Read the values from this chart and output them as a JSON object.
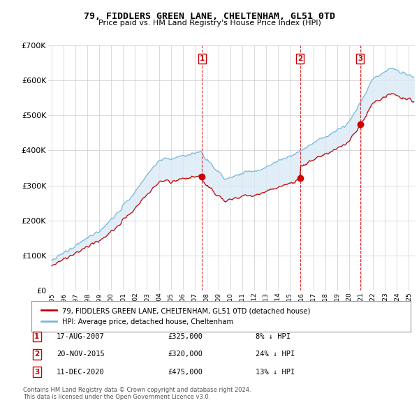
{
  "title": "79, FIDDLERS GREEN LANE, CHELTENHAM, GL51 0TD",
  "subtitle": "Price paid vs. HM Land Registry's House Price Index (HPI)",
  "legend_line1": "79, FIDDLERS GREEN LANE, CHELTENHAM, GL51 0TD (detached house)",
  "legend_line2": "HPI: Average price, detached house, Cheltenham",
  "transactions": [
    {
      "num": 1,
      "date": "17-AUG-2007",
      "price": 325000,
      "pct": "8%",
      "dir": "↓",
      "year": 2007.625
    },
    {
      "num": 2,
      "date": "20-NOV-2015",
      "price": 320000,
      "pct": "24%",
      "dir": "↓",
      "year": 2015.875
    },
    {
      "num": 3,
      "date": "11-DEC-2020",
      "price": 475000,
      "pct": "13%",
      "dir": "↓",
      "year": 2020.917
    }
  ],
  "footer_line1": "Contains HM Land Registry data © Crown copyright and database right 2024.",
  "footer_line2": "This data is licensed under the Open Government Licence v3.0.",
  "hpi_color": "#7ab8d9",
  "hpi_fill_color": "#daeaf5",
  "price_color": "#cc0000",
  "marker_color": "#cc0000",
  "vline_color": "#cc0000",
  "background_color": "#ffffff",
  "grid_color": "#cccccc",
  "ylim": [
    0,
    700000
  ],
  "yticks": [
    0,
    100000,
    200000,
    300000,
    400000,
    500000,
    600000,
    700000
  ],
  "xlim_start": 1994.7,
  "xlim_end": 2025.5
}
